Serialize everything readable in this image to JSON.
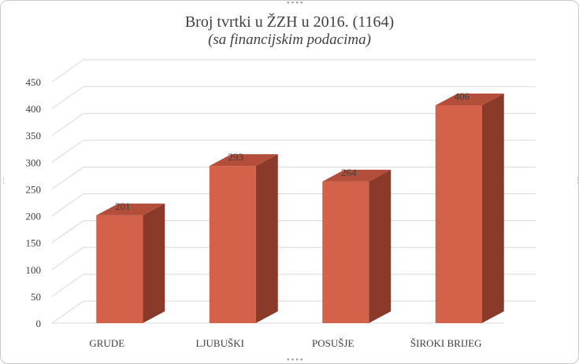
{
  "chart_data": {
    "type": "bar",
    "title": "Broj tvrtki u ŽZH u 2016. (1164)",
    "subtitle": "(sa financijskim podacima)",
    "categories": [
      "GRUDE",
      "LJUBUŠKI",
      "POSUŠJE",
      "ŠIROKI BRIJEG"
    ],
    "values": [
      201,
      293,
      264,
      406
    ],
    "data_labels": [
      "201",
      "293",
      "264",
      "406"
    ],
    "y_ticks": [
      "0",
      "50",
      "100",
      "150",
      "200",
      "250",
      "300",
      "350",
      "400",
      "450"
    ],
    "ylim": [
      0,
      450
    ],
    "grid": true,
    "legend": "none",
    "style": "3d-column",
    "colors": {
      "front": "#d4614a",
      "side": "#8b3a2a",
      "top": "#b24e39",
      "grid": "#d9d9d9",
      "text": "#404040"
    }
  }
}
